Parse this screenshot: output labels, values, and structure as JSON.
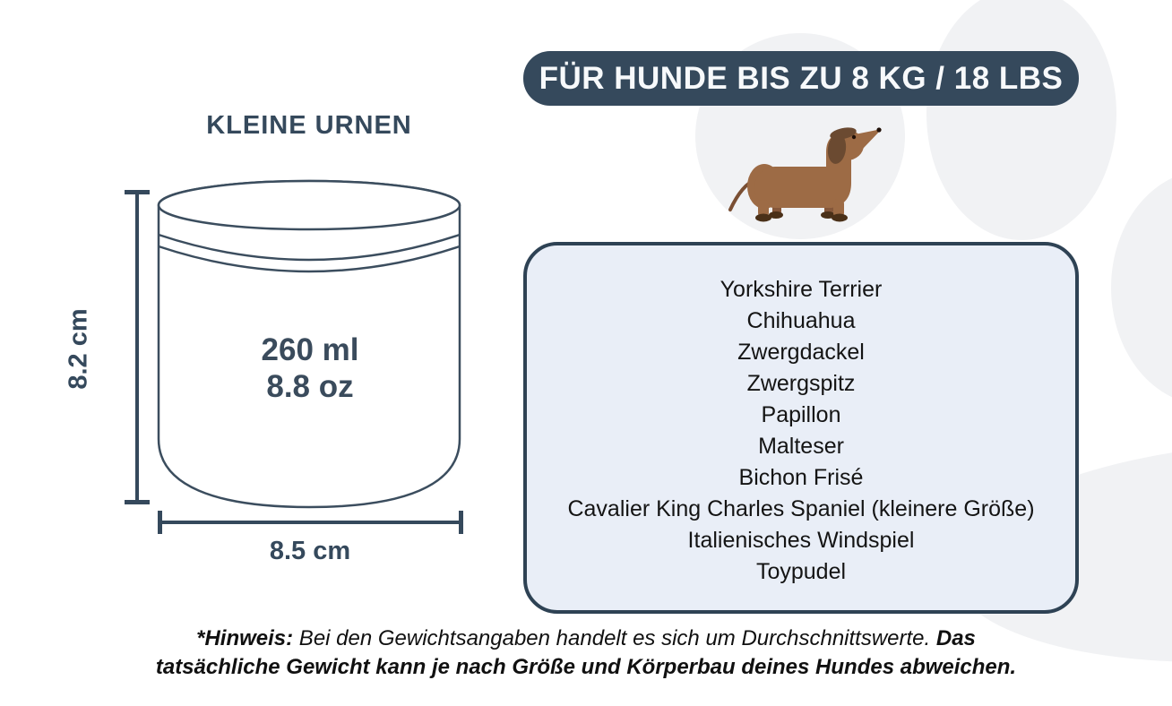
{
  "colors": {
    "accent_slate": "#35495c",
    "box_fill": "#e9eef7",
    "box_border": "#2e4254",
    "watermark_gray": "#f1f2f4",
    "badge_text": "#f7f9fb",
    "breed_text": "#141414",
    "dog_body_brown": "#9d6b45",
    "dog_dark_brown": "#6b4a31",
    "dog_paw_brown": "#4a3018"
  },
  "header": {
    "badge_label": "FÜR HUNDE BIS ZU 8 KG / 18 LBS"
  },
  "urn": {
    "title": "KLEINE URNEN",
    "volume_ml": "260 ml",
    "volume_oz": "8.8 oz",
    "height_label": "8.2 cm",
    "width_label": "8.5 cm"
  },
  "breeds": [
    "Yorkshire Terrier",
    "Chihuahua",
    "Zwergdackel",
    "Zwergspitz",
    "Papillon",
    "Malteser",
    "Bichon Frisé",
    "Cavalier King Charles Spaniel (kleinere Größe)",
    "Italienisches Windspiel",
    "Toypudel"
  ],
  "footnote": {
    "lines": [
      {
        "parts": [
          {
            "text": "*Hinweis:",
            "bold": true
          },
          {
            "text": " Bei den Gewichtsangaben handelt es sich um Durchschnittswerte. ",
            "bold": false
          },
          {
            "text": "Das",
            "bold": true
          }
        ]
      },
      {
        "parts": [
          {
            "text": "tatsächliche Gewicht kann je nach Größe und Körperbau deines Hundes abweichen.",
            "bold": true
          }
        ]
      }
    ]
  }
}
